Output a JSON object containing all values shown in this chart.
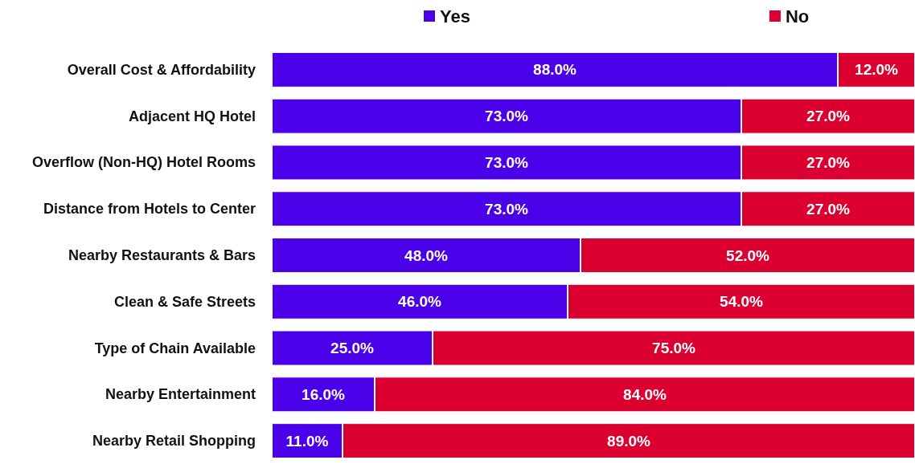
{
  "chart_data": {
    "type": "bar",
    "orientation": "horizontal",
    "stacked": true,
    "legend": "top",
    "tick_labels": "y",
    "grid": false,
    "xlim": [
      0,
      100
    ],
    "categories": [
      "Overall Cost & Affordability",
      "Adjacent HQ Hotel",
      "Overflow (Non-HQ) Hotel Rooms",
      "Distance from Hotels to Center",
      "Nearby Restaurants & Bars",
      "Clean & Safe Streets",
      "Type of Chain Available",
      "Nearby Entertainment",
      "Nearby Retail Shopping"
    ],
    "series": [
      {
        "name": "Yes",
        "color": "#4a00e8",
        "values": [
          88,
          73,
          73,
          73,
          48,
          46,
          25,
          16,
          11
        ],
        "value_labels": [
          "88.0%",
          "73.0%",
          "73.0%",
          "73.0%",
          "48.0%",
          "46.0%",
          "25.0%",
          "16.0%",
          "11.0%"
        ]
      },
      {
        "name": "No",
        "color": "#dc0030",
        "values": [
          12,
          27,
          27,
          27,
          52,
          54,
          75,
          84,
          89
        ],
        "value_labels": [
          "12.0%",
          "27.0%",
          "27.0%",
          "27.0%",
          "52.0%",
          "54.0%",
          "75.0%",
          "84.0%",
          "89.0%"
        ]
      }
    ]
  }
}
